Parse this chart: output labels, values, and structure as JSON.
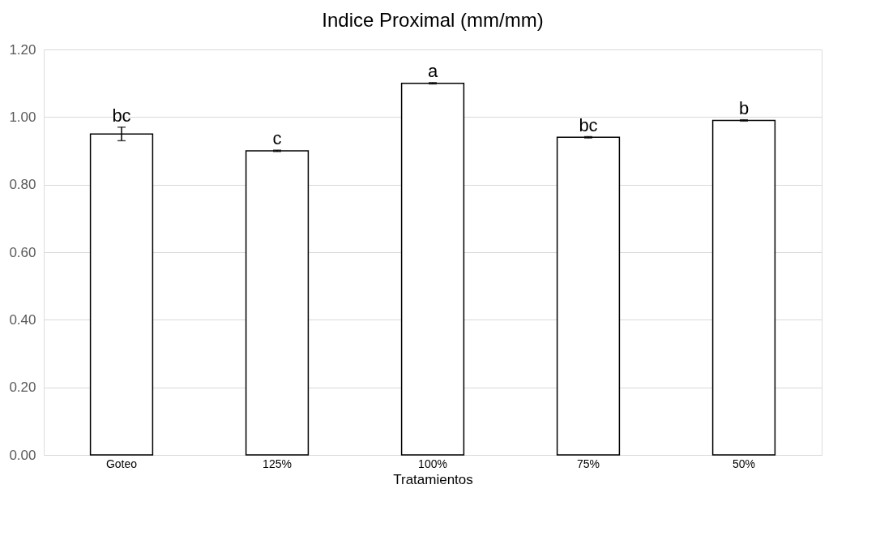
{
  "chart_data": {
    "type": "bar",
    "title": "Indice Proximal (mm/mm)",
    "xlabel": "Tratamientos",
    "categories": [
      "Goteo",
      "125%",
      "100%",
      "75%",
      "50%"
    ],
    "values": [
      0.95,
      0.9,
      1.1,
      0.94,
      0.99
    ],
    "errors": [
      0.02,
      0.002,
      0.002,
      0.002,
      0.002
    ],
    "color": "#ffffff",
    "ylim": [
      0,
      1.2
    ],
    "yticks": [
      {
        "value": 0,
        "label": "0.00"
      },
      {
        "value": 0.2,
        "label": "0.20"
      },
      {
        "value": 0.4,
        "label": "0.40"
      },
      {
        "value": 0.6,
        "label": "0.60"
      },
      {
        "value": 0.8,
        "label": "0.80"
      },
      {
        "value": 1.0,
        "label": "1.00"
      },
      {
        "value": 1.2,
        "label": "1.20"
      }
    ],
    "grid": "y",
    "annotations": [
      {
        "text": "bc",
        "x": "Goteo",
        "y": 0.97
      },
      {
        "text": "c",
        "x": "125%",
        "y": 0.902
      },
      {
        "text": "a",
        "x": "100%",
        "y": 1.102
      },
      {
        "text": "bc",
        "x": "75%",
        "y": 0.942
      },
      {
        "text": "b",
        "x": "50%",
        "y": 0.992
      }
    ]
  }
}
